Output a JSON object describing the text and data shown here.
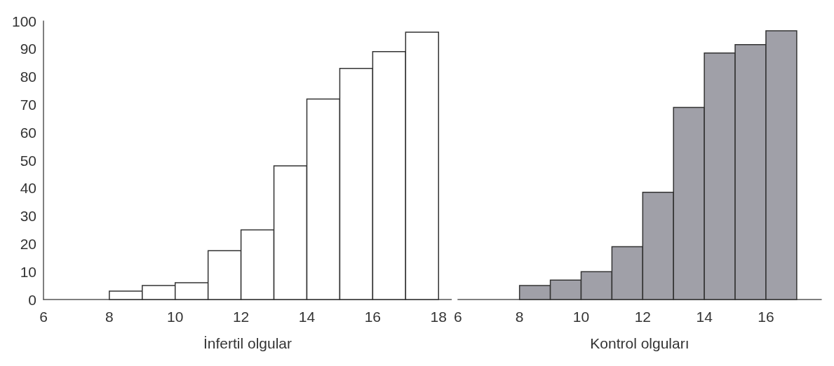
{
  "chart_data": [
    {
      "type": "histogram",
      "xlabel": "İnfertil olgular",
      "bins": [
        8,
        9,
        10,
        11,
        12,
        13,
        14,
        15,
        16,
        17,
        18
      ],
      "values": [
        3,
        5,
        6,
        17.5,
        25,
        48,
        72,
        83,
        89,
        96
      ],
      "color": "#ffffff",
      "xlim": [
        6,
        18.4
      ],
      "xticks": [
        6,
        8,
        10,
        12,
        14,
        16,
        18
      ],
      "ylim": [
        0,
        100
      ],
      "yticks": [
        0,
        10,
        20,
        30,
        40,
        50,
        60,
        70,
        80,
        90,
        100
      ],
      "grid": false
    },
    {
      "type": "histogram",
      "xlabel": "Kontrol olguları",
      "bins": [
        8,
        9,
        10,
        11,
        12,
        13,
        14,
        15,
        16,
        17
      ],
      "values": [
        5,
        7,
        10,
        19,
        38.5,
        69,
        88.5,
        91.5,
        96.5
      ],
      "color": "#a0a0a8",
      "xlim": [
        6,
        17.8
      ],
      "xticks": [
        6,
        8,
        10,
        12,
        14,
        16
      ],
      "ylim": [
        0,
        100
      ],
      "yticks": [
        0,
        10,
        20,
        30,
        40,
        50,
        60,
        70,
        80,
        90,
        100
      ],
      "grid": false,
      "tick_labels": "x"
    }
  ]
}
